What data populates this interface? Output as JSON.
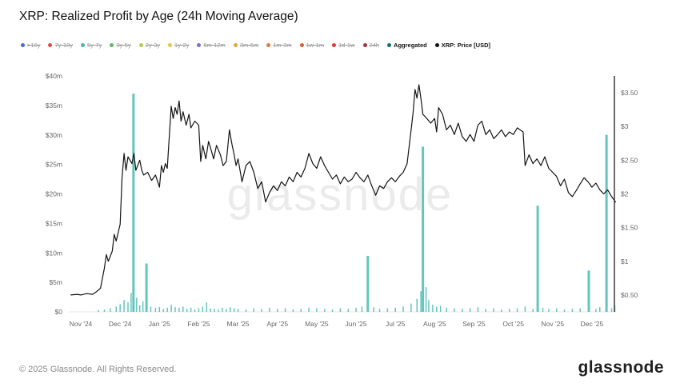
{
  "header": {
    "title": "XRP: Realized Profit by Age (24h Moving Average)"
  },
  "legend": {
    "items": [
      {
        "label": ">10y",
        "color": "#4a69dd",
        "active": false
      },
      {
        "label": "7y-10y",
        "color": "#d94f3d",
        "active": false
      },
      {
        "label": "5y-7y",
        "color": "#45b8b0",
        "active": false
      },
      {
        "label": "3y-5y",
        "color": "#59b86c",
        "active": false
      },
      {
        "label": "2y-3y",
        "color": "#b5cc4e",
        "active": false
      },
      {
        "label": "1y-2y",
        "color": "#e8c444",
        "active": false
      },
      {
        "label": "6m-12m",
        "color": "#7a6fd6",
        "active": false
      },
      {
        "label": "3m-6m",
        "color": "#e0a93e",
        "active": false
      },
      {
        "label": "1m-3m",
        "color": "#e07b39",
        "active": false
      },
      {
        "label": "1w-1m",
        "color": "#d95f39",
        "active": false
      },
      {
        "label": "1d-1w",
        "color": "#d93b3b",
        "active": false
      },
      {
        "label": "24h",
        "color": "#a8323a",
        "active": false
      },
      {
        "label": "Aggregated",
        "color": "#12706b",
        "active": true
      },
      {
        "label": "XRP: Price [USD]",
        "color": "#111111",
        "active": true
      }
    ]
  },
  "chart_data": {
    "type": "mixed",
    "title": "XRP: Realized Profit by Age (24h Moving Average)",
    "watermark": "glassnode",
    "grid": false,
    "x_axis": {
      "months": [
        {
          "m": 0,
          "label": "Nov '24"
        },
        {
          "m": 1,
          "label": "Dec '24"
        },
        {
          "m": 2,
          "label": "Jan '25"
        },
        {
          "m": 3,
          "label": "Feb '25"
        },
        {
          "m": 4,
          "label": "Mar '25"
        },
        {
          "m": 5,
          "label": "Apr '25"
        },
        {
          "m": 6,
          "label": "May '25"
        },
        {
          "m": 7,
          "label": "Jun '25"
        },
        {
          "m": 8,
          "label": "Jul '25"
        },
        {
          "m": 9,
          "label": "Aug '25"
        },
        {
          "m": 10,
          "label": "Sep '25"
        },
        {
          "m": 11,
          "label": "Oct '25"
        },
        {
          "m": 12,
          "label": "Nov '25"
        },
        {
          "m": 13,
          "label": "Dec '25"
        }
      ]
    },
    "left_axis": {
      "unit": "USD millions (realized profit)",
      "range": [
        0,
        40
      ],
      "ticks": [
        {
          "v": 0,
          "label": "$0"
        },
        {
          "v": 5,
          "label": "$5m"
        },
        {
          "v": 10,
          "label": "$10m"
        },
        {
          "v": 15,
          "label": "$15m"
        },
        {
          "v": 20,
          "label": "$20m"
        },
        {
          "v": 25,
          "label": "$25m"
        },
        {
          "v": 30,
          "label": "$30m"
        },
        {
          "v": 35,
          "label": "$35m"
        },
        {
          "v": 40,
          "label": "$40m"
        }
      ]
    },
    "right_axis": {
      "unit": "XRP price USD",
      "range": [
        0.25,
        3.75
      ],
      "ticks": [
        {
          "v": 0.5,
          "label": "$0.50"
        },
        {
          "v": 1.0,
          "label": "$1"
        },
        {
          "v": 1.5,
          "label": "$1.50"
        },
        {
          "v": 2.0,
          "label": "$2"
        },
        {
          "v": 2.5,
          "label": "$2.50"
        },
        {
          "v": 3.0,
          "label": "$3"
        },
        {
          "v": 3.5,
          "label": "$3.50"
        }
      ]
    },
    "series": [
      {
        "name": "Aggregated",
        "type": "bar",
        "axis": "left",
        "color": "#63c5bd",
        "unit": "million USD",
        "points": [
          [
            0.45,
            0.3
          ],
          [
            0.6,
            0.4
          ],
          [
            0.75,
            0.6
          ],
          [
            0.9,
            0.9
          ],
          [
            1.0,
            1.3
          ],
          [
            1.1,
            2.0
          ],
          [
            1.2,
            1.6
          ],
          [
            1.28,
            3.2
          ],
          [
            1.34,
            37.0
          ],
          [
            1.42,
            2.4
          ],
          [
            1.5,
            1.1
          ],
          [
            1.58,
            1.8
          ],
          [
            1.67,
            8.2
          ],
          [
            1.78,
            0.9
          ],
          [
            1.9,
            0.7
          ],
          [
            2.0,
            0.8
          ],
          [
            2.1,
            0.5
          ],
          [
            2.2,
            0.7
          ],
          [
            2.3,
            1.2
          ],
          [
            2.4,
            0.8
          ],
          [
            2.5,
            0.7
          ],
          [
            2.6,
            0.9
          ],
          [
            2.7,
            0.5
          ],
          [
            2.8,
            0.7
          ],
          [
            2.9,
            0.4
          ],
          [
            3.0,
            0.6
          ],
          [
            3.1,
            0.9
          ],
          [
            3.2,
            1.6
          ],
          [
            3.3,
            0.6
          ],
          [
            3.4,
            0.5
          ],
          [
            3.5,
            0.4
          ],
          [
            3.6,
            0.7
          ],
          [
            3.7,
            0.5
          ],
          [
            3.8,
            0.8
          ],
          [
            3.9,
            0.6
          ],
          [
            4.0,
            0.5
          ],
          [
            4.2,
            0.4
          ],
          [
            4.4,
            0.6
          ],
          [
            4.6,
            0.5
          ],
          [
            4.8,
            0.7
          ],
          [
            5.0,
            0.5
          ],
          [
            5.2,
            0.6
          ],
          [
            5.4,
            0.4
          ],
          [
            5.6,
            0.5
          ],
          [
            5.8,
            0.7
          ],
          [
            6.0,
            0.6
          ],
          [
            6.2,
            0.5
          ],
          [
            6.4,
            0.4
          ],
          [
            6.6,
            0.6
          ],
          [
            6.8,
            0.5
          ],
          [
            7.0,
            0.7
          ],
          [
            7.15,
            0.9
          ],
          [
            7.3,
            9.5
          ],
          [
            7.45,
            0.8
          ],
          [
            7.6,
            0.5
          ],
          [
            7.8,
            0.6
          ],
          [
            8.0,
            0.7
          ],
          [
            8.2,
            0.9
          ],
          [
            8.4,
            1.4
          ],
          [
            8.55,
            2.2
          ],
          [
            8.65,
            3.5
          ],
          [
            8.7,
            28.0
          ],
          [
            8.78,
            4.2
          ],
          [
            8.85,
            2.0
          ],
          [
            8.95,
            1.2
          ],
          [
            9.05,
            0.9
          ],
          [
            9.15,
            1.0
          ],
          [
            9.3,
            0.7
          ],
          [
            9.5,
            0.6
          ],
          [
            9.7,
            0.5
          ],
          [
            9.9,
            0.6
          ],
          [
            10.1,
            0.8
          ],
          [
            10.3,
            0.5
          ],
          [
            10.5,
            0.6
          ],
          [
            10.7,
            0.4
          ],
          [
            10.9,
            0.5
          ],
          [
            11.1,
            0.6
          ],
          [
            11.3,
            0.9
          ],
          [
            11.5,
            0.5
          ],
          [
            11.62,
            18.0
          ],
          [
            11.75,
            0.7
          ],
          [
            11.9,
            0.5
          ],
          [
            12.1,
            0.6
          ],
          [
            12.3,
            0.4
          ],
          [
            12.5,
            0.5
          ],
          [
            12.7,
            0.6
          ],
          [
            12.92,
            7.0
          ],
          [
            13.1,
            0.5
          ],
          [
            13.2,
            0.8
          ],
          [
            13.37,
            30.0
          ],
          [
            13.5,
            0.6
          ],
          [
            13.58,
            1.1
          ]
        ]
      },
      {
        "name": "XRP: Price [USD]",
        "type": "line",
        "axis": "right",
        "color": "#141414",
        "points": [
          [
            -0.25,
            0.5
          ],
          [
            -0.1,
            0.51
          ],
          [
            0,
            0.5
          ],
          [
            0.15,
            0.52
          ],
          [
            0.3,
            0.51
          ],
          [
            0.4,
            0.55
          ],
          [
            0.5,
            0.6
          ],
          [
            0.6,
            0.9
          ],
          [
            0.65,
            1.1
          ],
          [
            0.7,
            1.0
          ],
          [
            0.8,
            1.15
          ],
          [
            0.85,
            1.4
          ],
          [
            0.9,
            1.3
          ],
          [
            1.0,
            1.55
          ],
          [
            1.05,
            2.25
          ],
          [
            1.1,
            2.6
          ],
          [
            1.15,
            2.35
          ],
          [
            1.2,
            2.55
          ],
          [
            1.3,
            2.45
          ],
          [
            1.35,
            2.6
          ],
          [
            1.4,
            2.35
          ],
          [
            1.5,
            2.5
          ],
          [
            1.55,
            2.35
          ],
          [
            1.6,
            2.28
          ],
          [
            1.7,
            2.32
          ],
          [
            1.8,
            2.2
          ],
          [
            1.9,
            2.28
          ],
          [
            2.0,
            2.1
          ],
          [
            2.05,
            2.42
          ],
          [
            2.1,
            2.32
          ],
          [
            2.15,
            2.45
          ],
          [
            2.2,
            2.38
          ],
          [
            2.3,
            3.3
          ],
          [
            2.35,
            3.12
          ],
          [
            2.4,
            3.28
          ],
          [
            2.45,
            3.18
          ],
          [
            2.5,
            3.38
          ],
          [
            2.55,
            3.08
          ],
          [
            2.6,
            3.22
          ],
          [
            2.68,
            3.02
          ],
          [
            2.75,
            3.18
          ],
          [
            2.8,
            2.98
          ],
          [
            2.9,
            3.08
          ],
          [
            3.0,
            3.02
          ],
          [
            3.05,
            2.48
          ],
          [
            3.1,
            2.72
          ],
          [
            3.18,
            2.52
          ],
          [
            3.25,
            2.78
          ],
          [
            3.3,
            2.68
          ],
          [
            3.38,
            2.52
          ],
          [
            3.45,
            2.72
          ],
          [
            3.55,
            2.58
          ],
          [
            3.62,
            2.42
          ],
          [
            3.7,
            2.48
          ],
          [
            3.78,
            2.95
          ],
          [
            3.85,
            2.72
          ],
          [
            3.9,
            2.58
          ],
          [
            3.95,
            2.42
          ],
          [
            4.0,
            2.52
          ],
          [
            4.1,
            2.18
          ],
          [
            4.2,
            2.42
          ],
          [
            4.3,
            2.48
          ],
          [
            4.4,
            2.32
          ],
          [
            4.5,
            2.08
          ],
          [
            4.6,
            2.18
          ],
          [
            4.7,
            1.88
          ],
          [
            4.8,
            2.02
          ],
          [
            4.9,
            2.12
          ],
          [
            5.0,
            2.05
          ],
          [
            5.1,
            2.18
          ],
          [
            5.2,
            2.12
          ],
          [
            5.3,
            2.25
          ],
          [
            5.4,
            2.18
          ],
          [
            5.5,
            2.32
          ],
          [
            5.6,
            2.25
          ],
          [
            5.7,
            2.38
          ],
          [
            5.8,
            2.6
          ],
          [
            5.9,
            2.45
          ],
          [
            6.0,
            2.38
          ],
          [
            6.1,
            2.55
          ],
          [
            6.2,
            2.42
          ],
          [
            6.3,
            2.32
          ],
          [
            6.4,
            2.22
          ],
          [
            6.5,
            2.28
          ],
          [
            6.6,
            2.15
          ],
          [
            6.7,
            2.25
          ],
          [
            6.8,
            2.18
          ],
          [
            6.9,
            2.22
          ],
          [
            7.0,
            2.32
          ],
          [
            7.1,
            2.24
          ],
          [
            7.2,
            2.18
          ],
          [
            7.3,
            2.28
          ],
          [
            7.4,
            2.12
          ],
          [
            7.5,
            1.98
          ],
          [
            7.6,
            2.12
          ],
          [
            7.7,
            2.08
          ],
          [
            7.8,
            2.18
          ],
          [
            7.9,
            2.24
          ],
          [
            8.0,
            2.18
          ],
          [
            8.1,
            2.26
          ],
          [
            8.2,
            2.32
          ],
          [
            8.3,
            2.45
          ],
          [
            8.4,
            2.95
          ],
          [
            8.45,
            3.2
          ],
          [
            8.5,
            3.55
          ],
          [
            8.55,
            3.42
          ],
          [
            8.6,
            3.62
          ],
          [
            8.65,
            3.42
          ],
          [
            8.7,
            3.18
          ],
          [
            8.8,
            3.12
          ],
          [
            8.9,
            3.05
          ],
          [
            9.0,
            3.12
          ],
          [
            9.05,
            2.92
          ],
          [
            9.1,
            3.28
          ],
          [
            9.2,
            3.18
          ],
          [
            9.3,
            2.95
          ],
          [
            9.4,
            3.02
          ],
          [
            9.5,
            2.88
          ],
          [
            9.6,
            3.05
          ],
          [
            9.7,
            2.85
          ],
          [
            9.8,
            2.78
          ],
          [
            9.9,
            2.88
          ],
          [
            10.0,
            2.78
          ],
          [
            10.1,
            3.02
          ],
          [
            10.2,
            3.08
          ],
          [
            10.3,
            2.88
          ],
          [
            10.4,
            2.95
          ],
          [
            10.5,
            2.82
          ],
          [
            10.6,
            2.88
          ],
          [
            10.7,
            2.95
          ],
          [
            10.8,
            2.85
          ],
          [
            10.9,
            2.92
          ],
          [
            11.0,
            2.88
          ],
          [
            11.1,
            2.98
          ],
          [
            11.25,
            2.92
          ],
          [
            11.3,
            2.42
          ],
          [
            11.4,
            2.58
          ],
          [
            11.5,
            2.45
          ],
          [
            11.6,
            2.52
          ],
          [
            11.7,
            2.42
          ],
          [
            11.8,
            2.55
          ],
          [
            11.9,
            2.38
          ],
          [
            12.0,
            2.32
          ],
          [
            12.1,
            2.26
          ],
          [
            12.2,
            2.12
          ],
          [
            12.3,
            2.22
          ],
          [
            12.4,
            2.02
          ],
          [
            12.5,
            1.96
          ],
          [
            12.6,
            2.05
          ],
          [
            12.7,
            2.15
          ],
          [
            12.8,
            2.24
          ],
          [
            12.9,
            2.18
          ],
          [
            13.0,
            2.1
          ],
          [
            13.1,
            2.16
          ],
          [
            13.2,
            2.06
          ],
          [
            13.3,
            2.0
          ],
          [
            13.4,
            2.06
          ],
          [
            13.5,
            1.96
          ],
          [
            13.6,
            1.88
          ]
        ]
      }
    ]
  },
  "footer": {
    "copyright": "© 2025 Glassnode. All Rights Reserved.",
    "logo": "glassnode"
  }
}
